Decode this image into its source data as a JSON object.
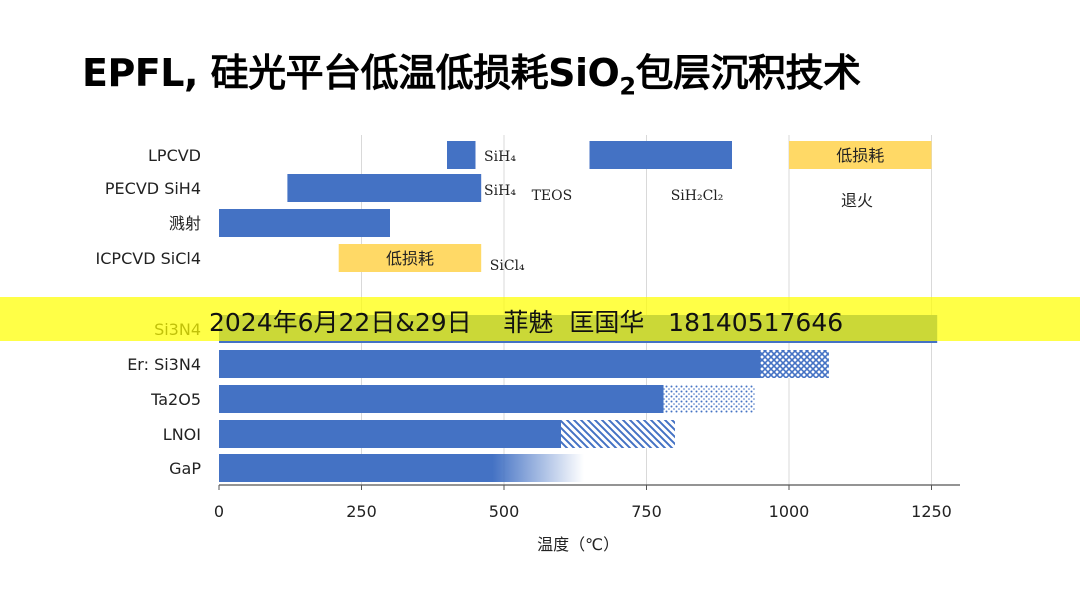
{
  "title": {
    "main": "EPFL, 硅光平台低温低损耗SiO",
    "sub": "2",
    "tail": "包层沉积技术"
  },
  "watermark": "2024年6月22日&29日    菲魅  匡国华   18140517646",
  "colors": {
    "bar": "#4472C4",
    "highlight": "#FFD966",
    "grid": "#d9d9d9",
    "watermark": "#FFFF00"
  },
  "chart_data": {
    "type": "bar",
    "orientation": "horizontal",
    "xlabel": "温度（℃）",
    "xlim": [
      0,
      1300
    ],
    "xticks": [
      0,
      250,
      500,
      750,
      1000,
      1250
    ],
    "grid": "vertical",
    "categories": [
      "LPCVD",
      "PECVD  SiH4",
      "溅射",
      "ICPCVD  SiCl4",
      "Si3N4",
      "Er: Si3N4",
      "Ta2O5",
      "LNOI",
      "GaP"
    ],
    "bars": [
      {
        "row": "LPCVD",
        "start": 400,
        "end": 450,
        "style": "solid"
      },
      {
        "row": "LPCVD",
        "start": 650,
        "end": 900,
        "style": "solid"
      },
      {
        "row": "LPCVD",
        "start": 1000,
        "end": 1250,
        "style": "highlight",
        "label": "低损耗"
      },
      {
        "row": "PECVD  SiH4",
        "start": 120,
        "end": 460,
        "style": "solid"
      },
      {
        "row": "溅射",
        "start": 0,
        "end": 300,
        "style": "solid"
      },
      {
        "row": "ICPCVD  SiCl4",
        "start": 210,
        "end": 460,
        "style": "highlight",
        "label": "低损耗"
      },
      {
        "row": "Si3N4",
        "start": 0,
        "end": 1260,
        "style": "solid"
      },
      {
        "row": "Er: Si3N4",
        "start": 0,
        "end": 950,
        "style": "solid"
      },
      {
        "row": "Er: Si3N4",
        "start": 950,
        "end": 1070,
        "style": "crosshatch"
      },
      {
        "row": "Ta2O5",
        "start": 0,
        "end": 780,
        "style": "solid"
      },
      {
        "row": "Ta2O5",
        "start": 780,
        "end": 940,
        "style": "dotted"
      },
      {
        "row": "LNOI",
        "start": 0,
        "end": 600,
        "style": "solid"
      },
      {
        "row": "LNOI",
        "start": 600,
        "end": 800,
        "style": "diagonal"
      },
      {
        "row": "GaP",
        "start": 0,
        "end": 640,
        "style": "fade",
        "fade_from": 480
      }
    ],
    "annotations": [
      {
        "text": "SiH₄",
        "row": "LPCVD",
        "x": 465
      },
      {
        "text": "SiH₄",
        "row": "PECVD  SiH4",
        "x": 465
      },
      {
        "text": "TEOS",
        "row": "PECVD  SiH4",
        "x": 680
      },
      {
        "text": "SiH₂Cl₂",
        "row": "PECVD  SiH4",
        "x": 810
      },
      {
        "text": "退火",
        "row": "PECVD  SiH4",
        "x": 1125
      },
      {
        "text": "SiCl₄",
        "row": "ICPCVD  SiCl4",
        "x": 475
      }
    ]
  }
}
